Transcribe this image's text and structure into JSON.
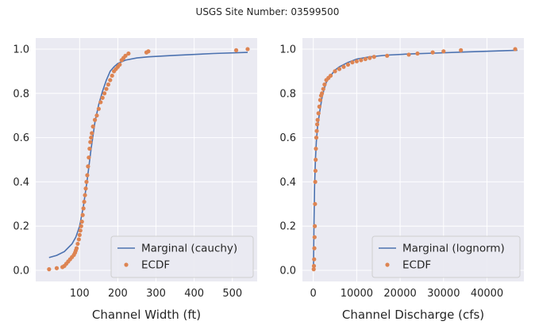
{
  "figure": {
    "suptitle": "USGS Site Number: 03599500"
  },
  "colors": {
    "plot_bg": "#EAEAF2",
    "grid": "#FFFFFF",
    "marginal": "#4C72B0",
    "ecdf": "#DD8452"
  },
  "chart_data": [
    {
      "type": "line",
      "xlabel": "Channel Width (ft)",
      "ylabel": "",
      "xlim": [
        -15,
        565
      ],
      "ylim": [
        -0.05,
        1.05
      ],
      "xticks": [
        100,
        200,
        300,
        400,
        500
      ],
      "yticks": [
        0.0,
        0.2,
        0.4,
        0.6,
        0.8,
        1.0
      ],
      "ytick_labels": [
        "0.0",
        "0.2",
        "0.4",
        "0.6",
        "0.8",
        "1.0"
      ],
      "grid": true,
      "legend_position": "lower-right",
      "series": [
        {
          "name": "Marginal (cauchy)",
          "type": "line",
          "points": [
            [
              20,
              0.058
            ],
            [
              40,
              0.068
            ],
            [
              60,
              0.085
            ],
            [
              80,
              0.12
            ],
            [
              90,
              0.15
            ],
            [
              100,
              0.2
            ],
            [
              110,
              0.29
            ],
            [
              120,
              0.41
            ],
            [
              130,
              0.55
            ],
            [
              140,
              0.67
            ],
            [
              150,
              0.75
            ],
            [
              160,
              0.81
            ],
            [
              170,
              0.86
            ],
            [
              180,
              0.9
            ],
            [
              190,
              0.92
            ],
            [
              200,
              0.935
            ],
            [
              220,
              0.95
            ],
            [
              250,
              0.96
            ],
            [
              280,
              0.965
            ],
            [
              350,
              0.972
            ],
            [
              450,
              0.98
            ],
            [
              540,
              0.985
            ]
          ]
        },
        {
          "name": "ECDF",
          "type": "scatter",
          "points": [
            [
              20,
              0.005
            ],
            [
              40,
              0.01
            ],
            [
              55,
              0.015
            ],
            [
              60,
              0.02
            ],
            [
              65,
              0.03
            ],
            [
              70,
              0.04
            ],
            [
              75,
              0.05
            ],
            [
              80,
              0.06
            ],
            [
              85,
              0.07
            ],
            [
              88,
              0.08
            ],
            [
              90,
              0.09
            ],
            [
              92,
              0.1
            ],
            [
              95,
              0.12
            ],
            [
              98,
              0.14
            ],
            [
              100,
              0.16
            ],
            [
              102,
              0.18
            ],
            [
              104,
              0.2
            ],
            [
              106,
              0.22
            ],
            [
              108,
              0.25
            ],
            [
              110,
              0.28
            ],
            [
              112,
              0.31
            ],
            [
              114,
              0.34
            ],
            [
              116,
              0.37
            ],
            [
              118,
              0.4
            ],
            [
              120,
              0.43
            ],
            [
              122,
              0.47
            ],
            [
              124,
              0.51
            ],
            [
              126,
              0.55
            ],
            [
              128,
              0.58
            ],
            [
              130,
              0.6
            ],
            [
              132,
              0.62
            ],
            [
              135,
              0.65
            ],
            [
              140,
              0.68
            ],
            [
              145,
              0.7
            ],
            [
              150,
              0.73
            ],
            [
              155,
              0.76
            ],
            [
              160,
              0.78
            ],
            [
              165,
              0.8
            ],
            [
              170,
              0.82
            ],
            [
              175,
              0.84
            ],
            [
              180,
              0.86
            ],
            [
              185,
              0.88
            ],
            [
              190,
              0.9
            ],
            [
              195,
              0.91
            ],
            [
              200,
              0.92
            ],
            [
              205,
              0.93
            ],
            [
              210,
              0.95
            ],
            [
              215,
              0.96
            ],
            [
              220,
              0.97
            ],
            [
              228,
              0.98
            ],
            [
              275,
              0.985
            ],
            [
              280,
              0.99
            ],
            [
              510,
              0.995
            ],
            [
              540,
              1.0
            ]
          ]
        }
      ]
    },
    {
      "type": "line",
      "xlabel": "Channel Discharge (cfs)",
      "ylabel": "",
      "xlim": [
        -2500,
        48500
      ],
      "ylim": [
        -0.05,
        1.05
      ],
      "xticks": [
        0,
        10000,
        20000,
        30000,
        40000
      ],
      "yticks": [
        0.0,
        0.2,
        0.4,
        0.6,
        0.8,
        1.0
      ],
      "ytick_labels": [
        "0.0",
        "0.2",
        "0.4",
        "0.6",
        "0.8",
        "1.0"
      ],
      "grid": true,
      "legend_position": "lower-right",
      "series": [
        {
          "name": "Marginal (lognorm)",
          "type": "line",
          "points": [
            [
              50,
              0.0
            ],
            [
              150,
              0.2
            ],
            [
              300,
              0.38
            ],
            [
              500,
              0.5
            ],
            [
              700,
              0.58
            ],
            [
              1000,
              0.65
            ],
            [
              1500,
              0.72
            ],
            [
              2000,
              0.78
            ],
            [
              2500,
              0.82
            ],
            [
              3000,
              0.85
            ],
            [
              4000,
              0.88
            ],
            [
              5000,
              0.905
            ],
            [
              6000,
              0.92
            ],
            [
              8000,
              0.94
            ],
            [
              10000,
              0.955
            ],
            [
              13000,
              0.965
            ],
            [
              17000,
              0.973
            ],
            [
              22000,
              0.978
            ],
            [
              28000,
              0.982
            ],
            [
              35000,
              0.987
            ],
            [
              47000,
              0.995
            ]
          ]
        },
        {
          "name": "ECDF",
          "type": "scatter",
          "points": [
            [
              100,
              0.005
            ],
            [
              150,
              0.02
            ],
            [
              200,
              0.05
            ],
            [
              250,
              0.1
            ],
            [
              300,
              0.15
            ],
            [
              350,
              0.2
            ],
            [
              400,
              0.3
            ],
            [
              450,
              0.4
            ],
            [
              500,
              0.45
            ],
            [
              550,
              0.5
            ],
            [
              600,
              0.55
            ],
            [
              700,
              0.6
            ],
            [
              800,
              0.63
            ],
            [
              900,
              0.66
            ],
            [
              1000,
              0.68
            ],
            [
              1200,
              0.71
            ],
            [
              1400,
              0.74
            ],
            [
              1600,
              0.77
            ],
            [
              1800,
              0.79
            ],
            [
              2000,
              0.8
            ],
            [
              2300,
              0.82
            ],
            [
              2600,
              0.84
            ],
            [
              3000,
              0.86
            ],
            [
              3500,
              0.87
            ],
            [
              4000,
              0.88
            ],
            [
              5000,
              0.9
            ],
            [
              6000,
              0.91
            ],
            [
              7000,
              0.92
            ],
            [
              8000,
              0.93
            ],
            [
              9000,
              0.94
            ],
            [
              10000,
              0.945
            ],
            [
              11000,
              0.95
            ],
            [
              12000,
              0.955
            ],
            [
              13000,
              0.96
            ],
            [
              14000,
              0.965
            ],
            [
              17000,
              0.97
            ],
            [
              22000,
              0.975
            ],
            [
              24000,
              0.98
            ],
            [
              27500,
              0.985
            ],
            [
              30000,
              0.99
            ],
            [
              34000,
              0.995
            ],
            [
              46500,
              1.0
            ]
          ]
        }
      ]
    }
  ]
}
